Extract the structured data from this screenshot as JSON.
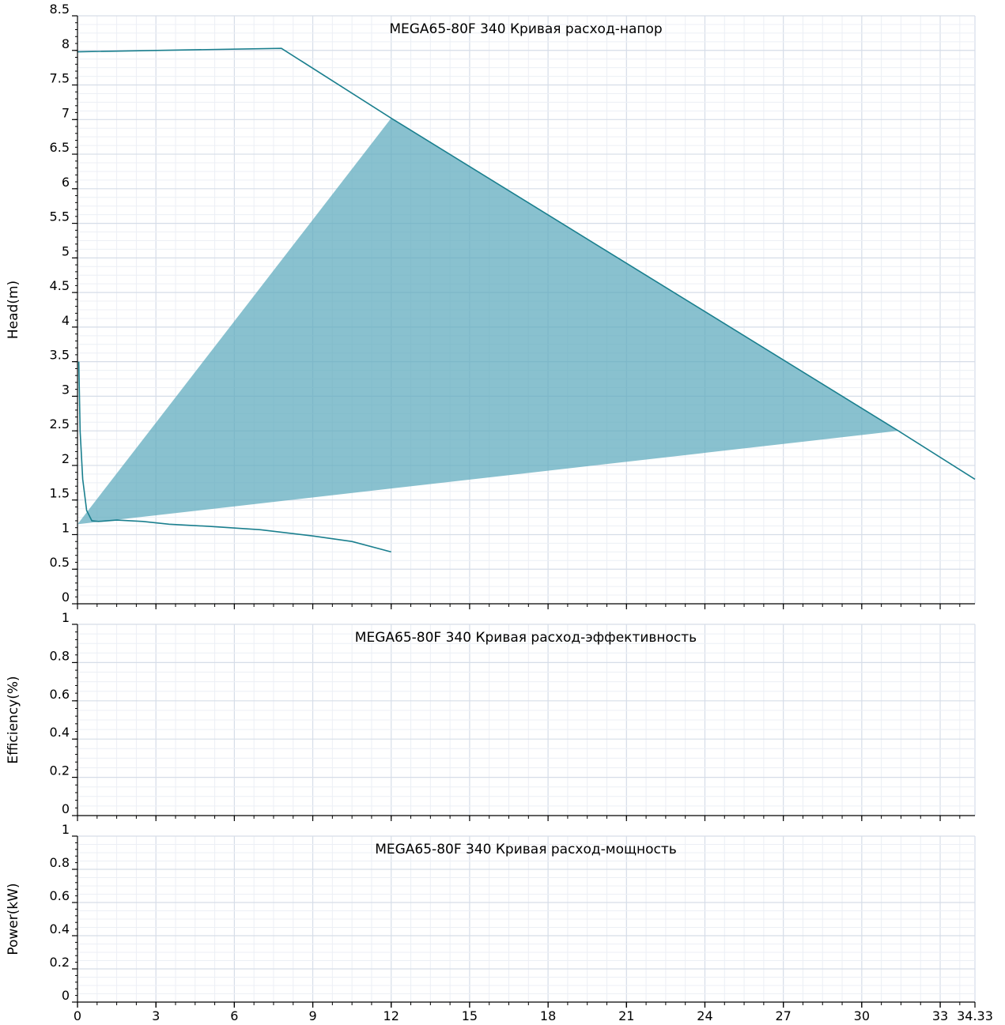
{
  "colors": {
    "curve": "#1a7f8e",
    "region_fill": "#5ba9bd",
    "grid_major": "#d6dde8",
    "grid_minor": "#eceff5",
    "axis": "#000000"
  },
  "chart_data": [
    {
      "id": "head",
      "type": "line",
      "title": "MEGA65-80F 340 Кривая расход-напор",
      "xlabel": "",
      "ylabel": "Head(m)",
      "xlim": [
        0,
        34.33
      ],
      "ylim": [
        0,
        8.5
      ],
      "yticks": [
        0,
        0.5,
        1,
        1.5,
        2,
        2.5,
        3,
        3.5,
        4,
        4.5,
        5,
        5.5,
        6,
        6.5,
        7,
        7.5,
        8,
        8.5
      ],
      "yticklabels": [
        "0",
        "0.5",
        "1",
        "1.5",
        "2",
        "2.5",
        "3",
        "3.5",
        "4",
        "4.5",
        "5",
        "5.5",
        "6",
        "6.5",
        "7",
        "7.5",
        "8",
        "8.5"
      ],
      "grid": true,
      "series": [
        {
          "points": [
            [
              0,
              7.98
            ],
            [
              7.8,
              8.03
            ],
            [
              12,
              7.02
            ],
            [
              31.4,
              2.5
            ],
            [
              34.33,
              1.8
            ]
          ]
        },
        {
          "points": [
            [
              0.05,
              3.5
            ],
            [
              0.1,
              2.5
            ],
            [
              0.2,
              1.8
            ],
            [
              0.35,
              1.35
            ],
            [
              0.55,
              1.2
            ],
            [
              0.8,
              1.19
            ],
            [
              1.5,
              1.21
            ],
            [
              2.5,
              1.19
            ],
            [
              3.5,
              1.15
            ],
            [
              5,
              1.12
            ],
            [
              7,
              1.07
            ],
            [
              9,
              0.98
            ],
            [
              10.5,
              0.9
            ],
            [
              12,
              0.75
            ]
          ]
        }
      ],
      "regions": [
        {
          "points": [
            [
              0,
              1.15
            ],
            [
              12,
              7.02
            ],
            [
              31.4,
              2.5
            ]
          ]
        }
      ]
    },
    {
      "id": "efficiency",
      "type": "line",
      "title": "MEGA65-80F 340 Кривая расход-эффективность",
      "xlabel": "",
      "ylabel": "Efficiency(%)",
      "xlim": [
        0,
        34.33
      ],
      "ylim": [
        0,
        1
      ],
      "yticks": [
        0,
        0.2,
        0.4,
        0.6,
        0.8,
        1
      ],
      "yticklabels": [
        "0",
        "0.2",
        "0.4",
        "0.6",
        "0.8",
        "1"
      ],
      "grid": true,
      "series": []
    },
    {
      "id": "power",
      "type": "line",
      "title": "MEGA65-80F 340 Кривая расход-мощность",
      "xlabel": "",
      "ylabel": "Power(kW)",
      "xlim": [
        0,
        34.33
      ],
      "ylim": [
        0,
        1
      ],
      "yticks": [
        0,
        0.2,
        0.4,
        0.6,
        0.8,
        1
      ],
      "yticklabels": [
        "0",
        "0.2",
        "0.4",
        "0.6",
        "0.8",
        "1"
      ],
      "xticks": [
        0,
        3,
        6,
        9,
        12,
        15,
        18,
        21,
        24,
        27,
        30,
        33,
        34.33
      ],
      "xticklabels": [
        "0",
        "3",
        "6",
        "9",
        "12",
        "15",
        "18",
        "21",
        "24",
        "27",
        "30",
        "33",
        "34.33"
      ],
      "grid": true,
      "series": []
    }
  ]
}
